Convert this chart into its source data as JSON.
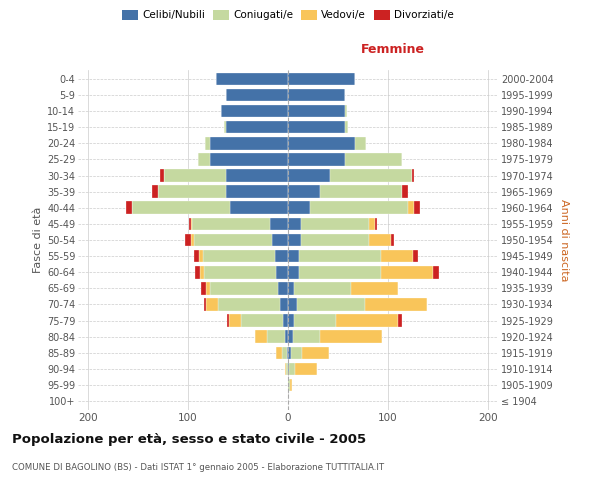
{
  "age_groups": [
    "100+",
    "95-99",
    "90-94",
    "85-89",
    "80-84",
    "75-79",
    "70-74",
    "65-69",
    "60-64",
    "55-59",
    "50-54",
    "45-49",
    "40-44",
    "35-39",
    "30-34",
    "25-29",
    "20-24",
    "15-19",
    "10-14",
    "5-9",
    "0-4"
  ],
  "birth_years": [
    "≤ 1904",
    "1905-1909",
    "1910-1914",
    "1915-1919",
    "1920-1924",
    "1925-1929",
    "1930-1934",
    "1935-1939",
    "1940-1944",
    "1945-1949",
    "1950-1954",
    "1955-1959",
    "1960-1964",
    "1965-1969",
    "1970-1974",
    "1975-1979",
    "1980-1984",
    "1985-1989",
    "1990-1994",
    "1995-1999",
    "2000-2004"
  ],
  "male": {
    "celibi": [
      0,
      0,
      0,
      1,
      3,
      5,
      8,
      10,
      12,
      13,
      16,
      18,
      58,
      62,
      62,
      78,
      78,
      62,
      67,
      62,
      72
    ],
    "coniugati": [
      0,
      0,
      2,
      5,
      18,
      42,
      62,
      68,
      72,
      72,
      78,
      78,
      98,
      68,
      62,
      12,
      5,
      2,
      0,
      0,
      0
    ],
    "vedovi": [
      0,
      0,
      1,
      6,
      12,
      12,
      12,
      4,
      4,
      4,
      3,
      1,
      0,
      0,
      0,
      0,
      0,
      0,
      0,
      0,
      0
    ],
    "divorziati": [
      0,
      0,
      0,
      0,
      0,
      2,
      2,
      5,
      5,
      5,
      6,
      2,
      6,
      6,
      4,
      0,
      0,
      0,
      0,
      0,
      0
    ]
  },
  "female": {
    "nubili": [
      0,
      0,
      1,
      3,
      5,
      6,
      9,
      6,
      11,
      11,
      13,
      13,
      22,
      32,
      42,
      57,
      67,
      57,
      57,
      57,
      67
    ],
    "coniugate": [
      0,
      2,
      6,
      11,
      27,
      42,
      68,
      57,
      82,
      82,
      68,
      68,
      98,
      82,
      82,
      57,
      11,
      3,
      2,
      0,
      0
    ],
    "vedove": [
      0,
      2,
      22,
      27,
      62,
      62,
      62,
      47,
      52,
      32,
      22,
      6,
      6,
      0,
      0,
      0,
      0,
      0,
      0,
      0,
      0
    ],
    "divorziate": [
      0,
      0,
      0,
      0,
      0,
      4,
      0,
      0,
      6,
      5,
      3,
      2,
      6,
      6,
      2,
      0,
      0,
      0,
      0,
      0,
      0
    ]
  },
  "colors": {
    "celibi_nubili": "#4472a8",
    "coniugati": "#c5d9a0",
    "vedovi": "#f9c55a",
    "divorziati": "#cc2222"
  },
  "xlim": 210,
  "title": "Popolazione per età, sesso e stato civile - 2005",
  "subtitle": "COMUNE DI BAGOLINO (BS) - Dati ISTAT 1° gennaio 2005 - Elaborazione TUTTITALIA.IT",
  "ylabel_left": "Fasce di età",
  "ylabel_right": "Anni di nascita",
  "xlabel_right": "Femmine"
}
